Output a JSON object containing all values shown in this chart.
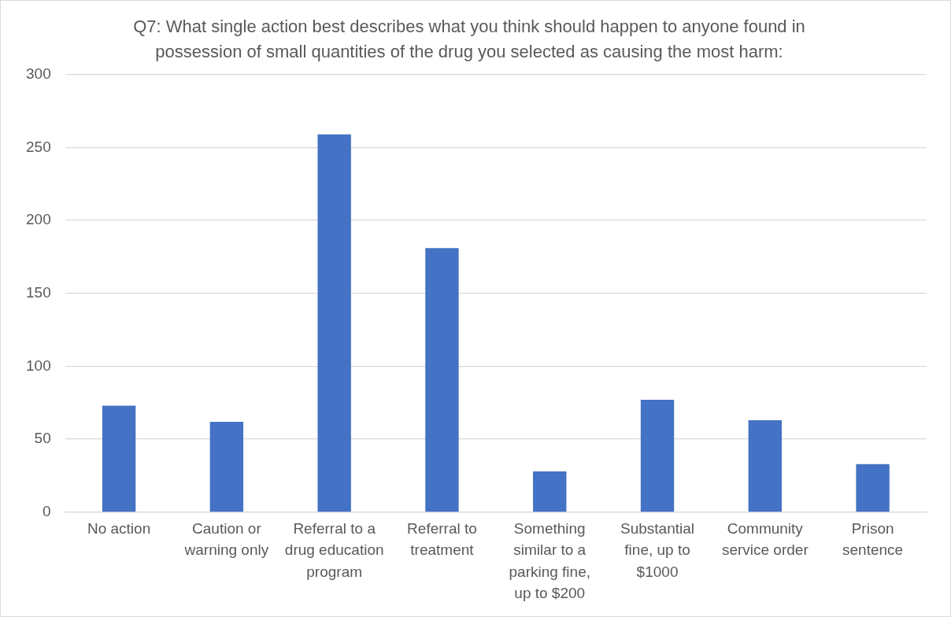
{
  "chart_data": {
    "type": "bar",
    "title": "Q7: What single action best describes what you think should happen to anyone found in possession of small quantities of the drug you selected as causing the most harm:",
    "categories": [
      "No action",
      "Caution or warning only",
      "Referral to a drug education program",
      "Referral to treatment",
      "Something similar to a parking fine, up to $200",
      "Substantial fine, up to $1000",
      "Community service order",
      "Prison sentence"
    ],
    "values": [
      73,
      62,
      259,
      181,
      28,
      77,
      63,
      33
    ],
    "color": "#4472c4",
    "ylim": [
      0,
      300
    ],
    "yticks": [
      0,
      50,
      100,
      150,
      200,
      250,
      300
    ],
    "grid": "y"
  }
}
